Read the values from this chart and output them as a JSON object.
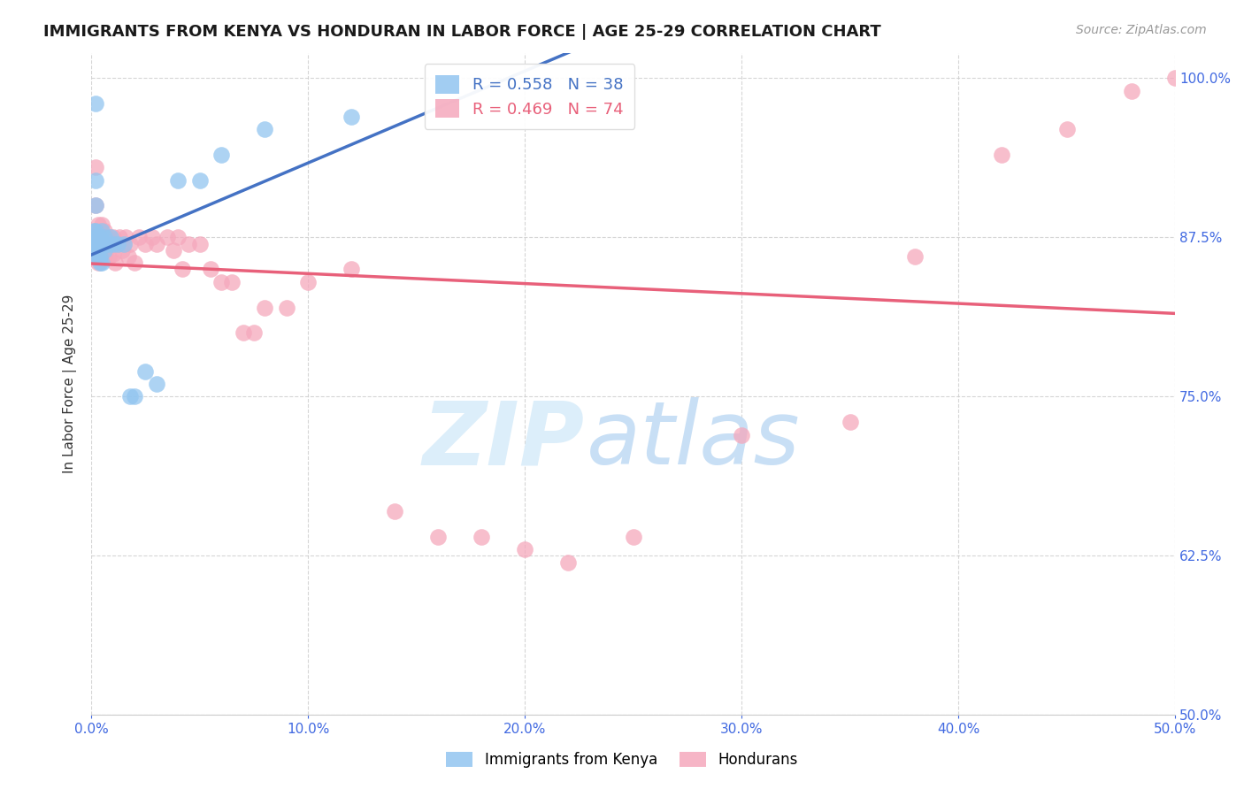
{
  "title": "IMMIGRANTS FROM KENYA VS HONDURAN IN LABOR FORCE | AGE 25-29 CORRELATION CHART",
  "source": "Source: ZipAtlas.com",
  "ylabel": "In Labor Force | Age 25-29",
  "xlim": [
    0.0,
    0.5
  ],
  "ylim": [
    0.5,
    1.02
  ],
  "xticks": [
    0.0,
    0.1,
    0.2,
    0.3,
    0.4,
    0.5
  ],
  "yticks": [
    0.5,
    0.625,
    0.75,
    0.875,
    1.0
  ],
  "xticklabels": [
    "0.0%",
    "10.0%",
    "20.0%",
    "30.0%",
    "40.0%",
    "50.0%"
  ],
  "yticklabels": [
    "50.0%",
    "62.5%",
    "75.0%",
    "87.5%",
    "100.0%"
  ],
  "kenya_color": "#92c5f0",
  "honduran_color": "#f5a8bc",
  "kenya_line_color": "#4472c4",
  "honduran_line_color": "#e8607a",
  "kenya_R": 0.558,
  "kenya_N": 38,
  "honduran_R": 0.469,
  "honduran_N": 74,
  "kenya_x": [
    0.001,
    0.001,
    0.001,
    0.002,
    0.002,
    0.002,
    0.002,
    0.002,
    0.002,
    0.003,
    0.003,
    0.003,
    0.003,
    0.003,
    0.004,
    0.004,
    0.004,
    0.004,
    0.005,
    0.005,
    0.005,
    0.006,
    0.006,
    0.007,
    0.008,
    0.009,
    0.01,
    0.012,
    0.015,
    0.018,
    0.02,
    0.025,
    0.03,
    0.04,
    0.05,
    0.06,
    0.08,
    0.12
  ],
  "kenya_y": [
    0.88,
    0.87,
    0.86,
    0.98,
    0.92,
    0.9,
    0.88,
    0.875,
    0.87,
    0.875,
    0.872,
    0.87,
    0.865,
    0.86,
    0.875,
    0.87,
    0.86,
    0.855,
    0.88,
    0.87,
    0.855,
    0.875,
    0.865,
    0.87,
    0.87,
    0.875,
    0.87,
    0.87,
    0.87,
    0.75,
    0.75,
    0.77,
    0.76,
    0.92,
    0.92,
    0.94,
    0.96,
    0.97
  ],
  "honduran_x": [
    0.001,
    0.001,
    0.001,
    0.002,
    0.002,
    0.002,
    0.002,
    0.002,
    0.003,
    0.003,
    0.003,
    0.003,
    0.003,
    0.003,
    0.004,
    0.004,
    0.004,
    0.004,
    0.005,
    0.005,
    0.005,
    0.005,
    0.006,
    0.006,
    0.006,
    0.006,
    0.007,
    0.007,
    0.008,
    0.008,
    0.009,
    0.01,
    0.01,
    0.011,
    0.012,
    0.013,
    0.014,
    0.015,
    0.016,
    0.017,
    0.018,
    0.02,
    0.022,
    0.025,
    0.028,
    0.03,
    0.035,
    0.038,
    0.04,
    0.042,
    0.045,
    0.05,
    0.055,
    0.06,
    0.065,
    0.07,
    0.075,
    0.08,
    0.09,
    0.1,
    0.12,
    0.14,
    0.16,
    0.18,
    0.2,
    0.22,
    0.25,
    0.3,
    0.35,
    0.38,
    0.42,
    0.45,
    0.48,
    0.5
  ],
  "honduran_y": [
    0.875,
    0.87,
    0.86,
    0.93,
    0.9,
    0.88,
    0.875,
    0.86,
    0.885,
    0.878,
    0.875,
    0.87,
    0.862,
    0.855,
    0.88,
    0.875,
    0.87,
    0.86,
    0.885,
    0.878,
    0.875,
    0.86,
    0.88,
    0.875,
    0.87,
    0.86,
    0.875,
    0.865,
    0.875,
    0.86,
    0.87,
    0.875,
    0.862,
    0.855,
    0.87,
    0.875,
    0.865,
    0.87,
    0.875,
    0.86,
    0.87,
    0.855,
    0.875,
    0.87,
    0.875,
    0.87,
    0.875,
    0.865,
    0.875,
    0.85,
    0.87,
    0.87,
    0.85,
    0.84,
    0.84,
    0.8,
    0.8,
    0.82,
    0.82,
    0.84,
    0.85,
    0.66,
    0.64,
    0.64,
    0.63,
    0.62,
    0.64,
    0.72,
    0.73,
    0.86,
    0.94,
    0.96,
    0.99,
    1.0
  ],
  "watermark_zip": "ZIP",
  "watermark_atlas": "atlas",
  "watermark_color": "#dceefa",
  "background_color": "#ffffff",
  "grid_color": "#cccccc",
  "tick_color": "#4169e1",
  "title_fontsize": 13,
  "axis_label_fontsize": 11,
  "tick_fontsize": 11,
  "legend_fontsize": 13,
  "source_fontsize": 10
}
